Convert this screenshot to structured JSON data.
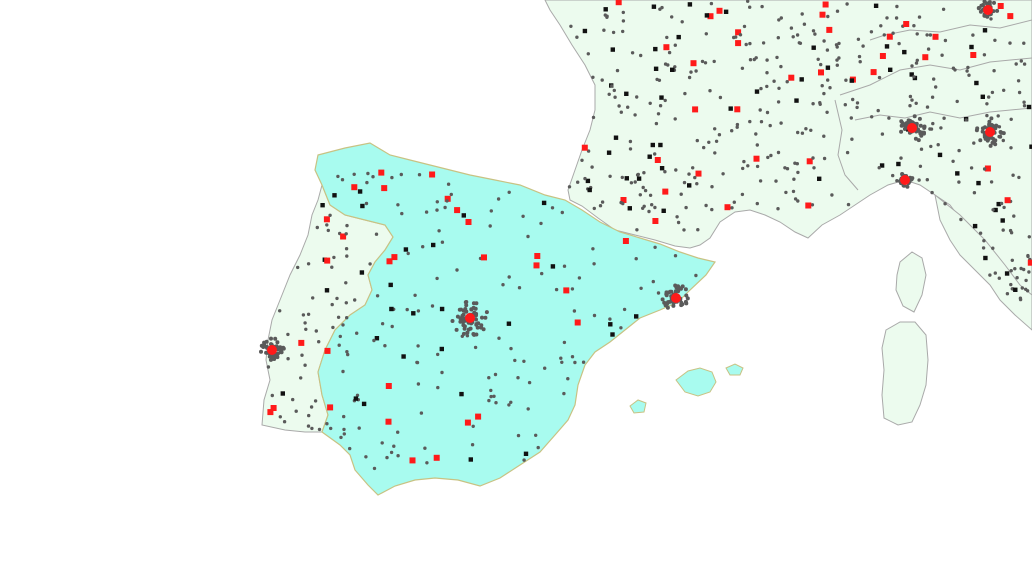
{
  "map": {
    "colors": {
      "background": "#ffffff",
      "land": "#ecfbee",
      "highlight_country": "#a8fbef",
      "highlight_border": "#c8c283",
      "border": "#a9a9a9",
      "small_city": "#5a5a5a",
      "town": "#111111",
      "capital": "#ff1a1a"
    },
    "symbols": {
      "small_city": "circle-dot",
      "town": "square",
      "major_city": "red-square",
      "capital": "red-circle"
    }
  }
}
